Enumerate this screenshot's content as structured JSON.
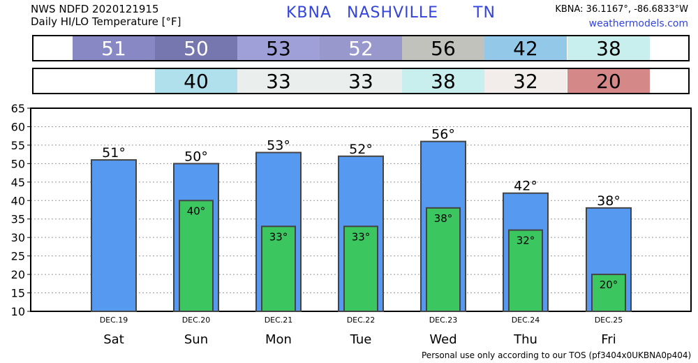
{
  "header": {
    "line1": "NWS NDFD 2020121915",
    "line2": "Daily HI/LO Temperature [°F]",
    "station": "KBNA",
    "city": "NASHVILLE",
    "state": "TN",
    "coords": "KBNA: 36.1167°, -86.6833°W",
    "site": "weathermodels.com"
  },
  "footer": {
    "tos": "Personal use only according to our TOS (pf3404x0UKBNA0p404)"
  },
  "hi_row": [
    {
      "text": "51",
      "bg": "#8888c4",
      "fg": "#ffffff"
    },
    {
      "text": "50",
      "bg": "#7777b0",
      "fg": "#ffffff"
    },
    {
      "text": "53",
      "bg": "#a0a0d8",
      "fg": "#000000"
    },
    {
      "text": "52",
      "bg": "#9898cc",
      "fg": "#ffffff"
    },
    {
      "text": "56",
      "bg": "#c2c2bc",
      "fg": "#000000"
    },
    {
      "text": "42",
      "bg": "#94c8e8",
      "fg": "#000000"
    },
    {
      "text": "38",
      "bg": "#c8eeee",
      "fg": "#000000"
    }
  ],
  "lo_row": [
    {
      "text": "",
      "bg": "#ffffff",
      "fg": "#000000"
    },
    {
      "text": "40",
      "bg": "#b0e0ec",
      "fg": "#000000"
    },
    {
      "text": "33",
      "bg": "#eaeeec",
      "fg": "#000000"
    },
    {
      "text": "33",
      "bg": "#eaeeec",
      "fg": "#000000"
    },
    {
      "text": "38",
      "bg": "#c8eeee",
      "fg": "#000000"
    },
    {
      "text": "32",
      "bg": "#f2ecea",
      "fg": "#000000"
    },
    {
      "text": "20",
      "bg": "#d48888",
      "fg": "#000000"
    }
  ],
  "chart_data": {
    "type": "bar",
    "categories": [
      "Sat",
      "Sun",
      "Mon",
      "Tue",
      "Wed",
      "Thu",
      "Fri"
    ],
    "dates": [
      "DEC.19",
      "DEC.20",
      "DEC.21",
      "DEC.22",
      "DEC.23",
      "DEC.24",
      "DEC.25"
    ],
    "series": [
      {
        "values": [
          51,
          50,
          53,
          52,
          56,
          42,
          38
        ],
        "color": "#5599f0"
      },
      {
        "values": [
          null,
          40,
          33,
          33,
          38,
          32,
          20
        ],
        "color": "#3cc660"
      }
    ],
    "ylim": [
      10,
      65
    ],
    "yticks": [
      10,
      15,
      20,
      25,
      30,
      35,
      40,
      45,
      50,
      55,
      60,
      65
    ],
    "degree_symbol": "°",
    "grid": true
  }
}
